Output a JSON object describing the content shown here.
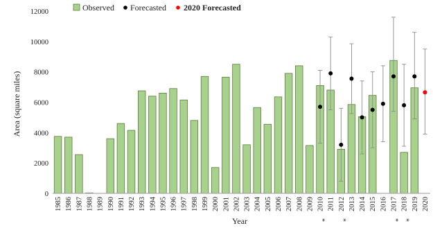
{
  "chart_data": {
    "type": "bar",
    "xlabel": "Year",
    "ylabel": "Area (square miles)",
    "ylim": [
      0,
      12000
    ],
    "yticks": [
      0,
      2000,
      4000,
      6000,
      8000,
      10000,
      12000
    ],
    "grid": false,
    "legend_position": "top",
    "categories": [
      "1985",
      "1986",
      "1987",
      "1988",
      "1989",
      "1990",
      "1991",
      "1992",
      "1993",
      "1994",
      "1995",
      "1996",
      "1997",
      "1998",
      "1999",
      "2000",
      "2001",
      "2002",
      "2003",
      "2004",
      "2005",
      "2006",
      "2007",
      "2008",
      "2009",
      "2010",
      "2011",
      "2012",
      "2013",
      "2014",
      "2015",
      "2016",
      "2017",
      "2018",
      "2019",
      "2020"
    ],
    "observed": {
      "name": "Observed",
      "color": "#a9d18e",
      "edge_color": "#5a7d3a",
      "values": [
        3750,
        3700,
        2550,
        30,
        null,
        3600,
        4600,
        4150,
        6750,
        6400,
        6600,
        6900,
        6150,
        4800,
        7700,
        1700,
        7650,
        8500,
        3200,
        5650,
        4550,
        6350,
        7900,
        8400,
        3150,
        7100,
        6800,
        2900,
        5850,
        5050,
        6450,
        null,
        8750,
        2700,
        6950,
        null
      ]
    },
    "forecasted": {
      "name": "Forecasted",
      "color": "#000000",
      "points": [
        {
          "x": "2010",
          "y": 5700,
          "low": 3300,
          "high": 8100
        },
        {
          "x": "2011",
          "y": 7900,
          "low": 5500,
          "high": 10300
        },
        {
          "x": "2012",
          "y": 3200,
          "low": 800,
          "high": 5600
        },
        {
          "x": "2013",
          "y": 7550,
          "low": 5250,
          "high": 9850
        },
        {
          "x": "2014",
          "y": 5000,
          "low": 2600,
          "high": 7400
        },
        {
          "x": "2015",
          "y": 5500,
          "low": 3000,
          "high": 8000
        },
        {
          "x": "2016",
          "y": 5900,
          "low": 3400,
          "high": 8400
        },
        {
          "x": "2017",
          "y": 7700,
          "low": 5400,
          "high": 11600
        },
        {
          "x": "2018",
          "y": 5800,
          "low": 3100,
          "high": 8500
        },
        {
          "x": "2019",
          "y": 7700,
          "low": 4900,
          "high": 10600
        }
      ]
    },
    "forecasted_2020": {
      "name": "2020 Forecasted",
      "color": "#ff0000",
      "points": [
        {
          "x": "2020",
          "y": 6650,
          "low": 3900,
          "high": 9500
        }
      ]
    },
    "asterisks": {
      "symbol": "*",
      "years": [
        "2011",
        "2013",
        "2018",
        "2019"
      ]
    }
  }
}
